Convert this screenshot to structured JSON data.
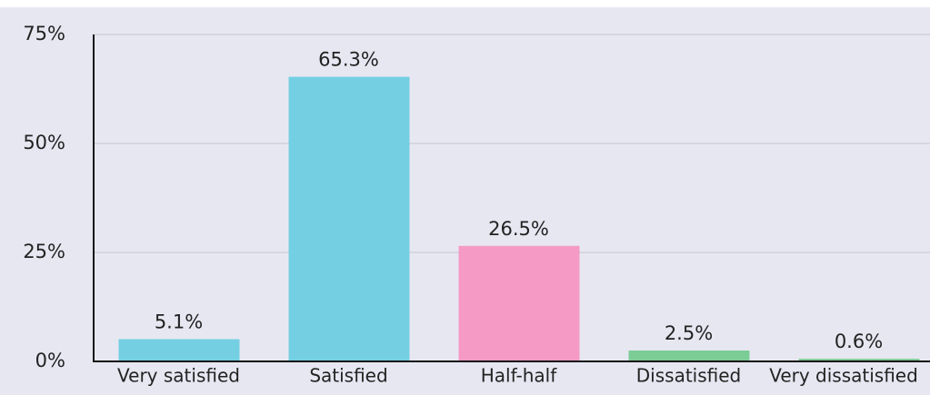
{
  "chart_data": {
    "type": "bar",
    "categories": [
      "Very satisfied",
      "Satisfied",
      "Half-half",
      "Dissatisfied",
      "Very dissatisfied"
    ],
    "values": [
      5.1,
      65.3,
      26.5,
      2.5,
      0.6
    ],
    "value_labels": [
      "5.1%",
      "65.3%",
      "26.5%",
      "2.5%",
      "0.6%"
    ],
    "colors": [
      "#74cfe2",
      "#74cfe2",
      "#f49ac4",
      "#7ccc95",
      "#7ccc95"
    ],
    "ylim": [
      0,
      75
    ],
    "yticks": [
      {
        "value": 0,
        "label": "0%"
      },
      {
        "value": 25,
        "label": "25%"
      },
      {
        "value": 50,
        "label": "50%"
      },
      {
        "value": 75,
        "label": "75%"
      }
    ],
    "grid": true
  }
}
